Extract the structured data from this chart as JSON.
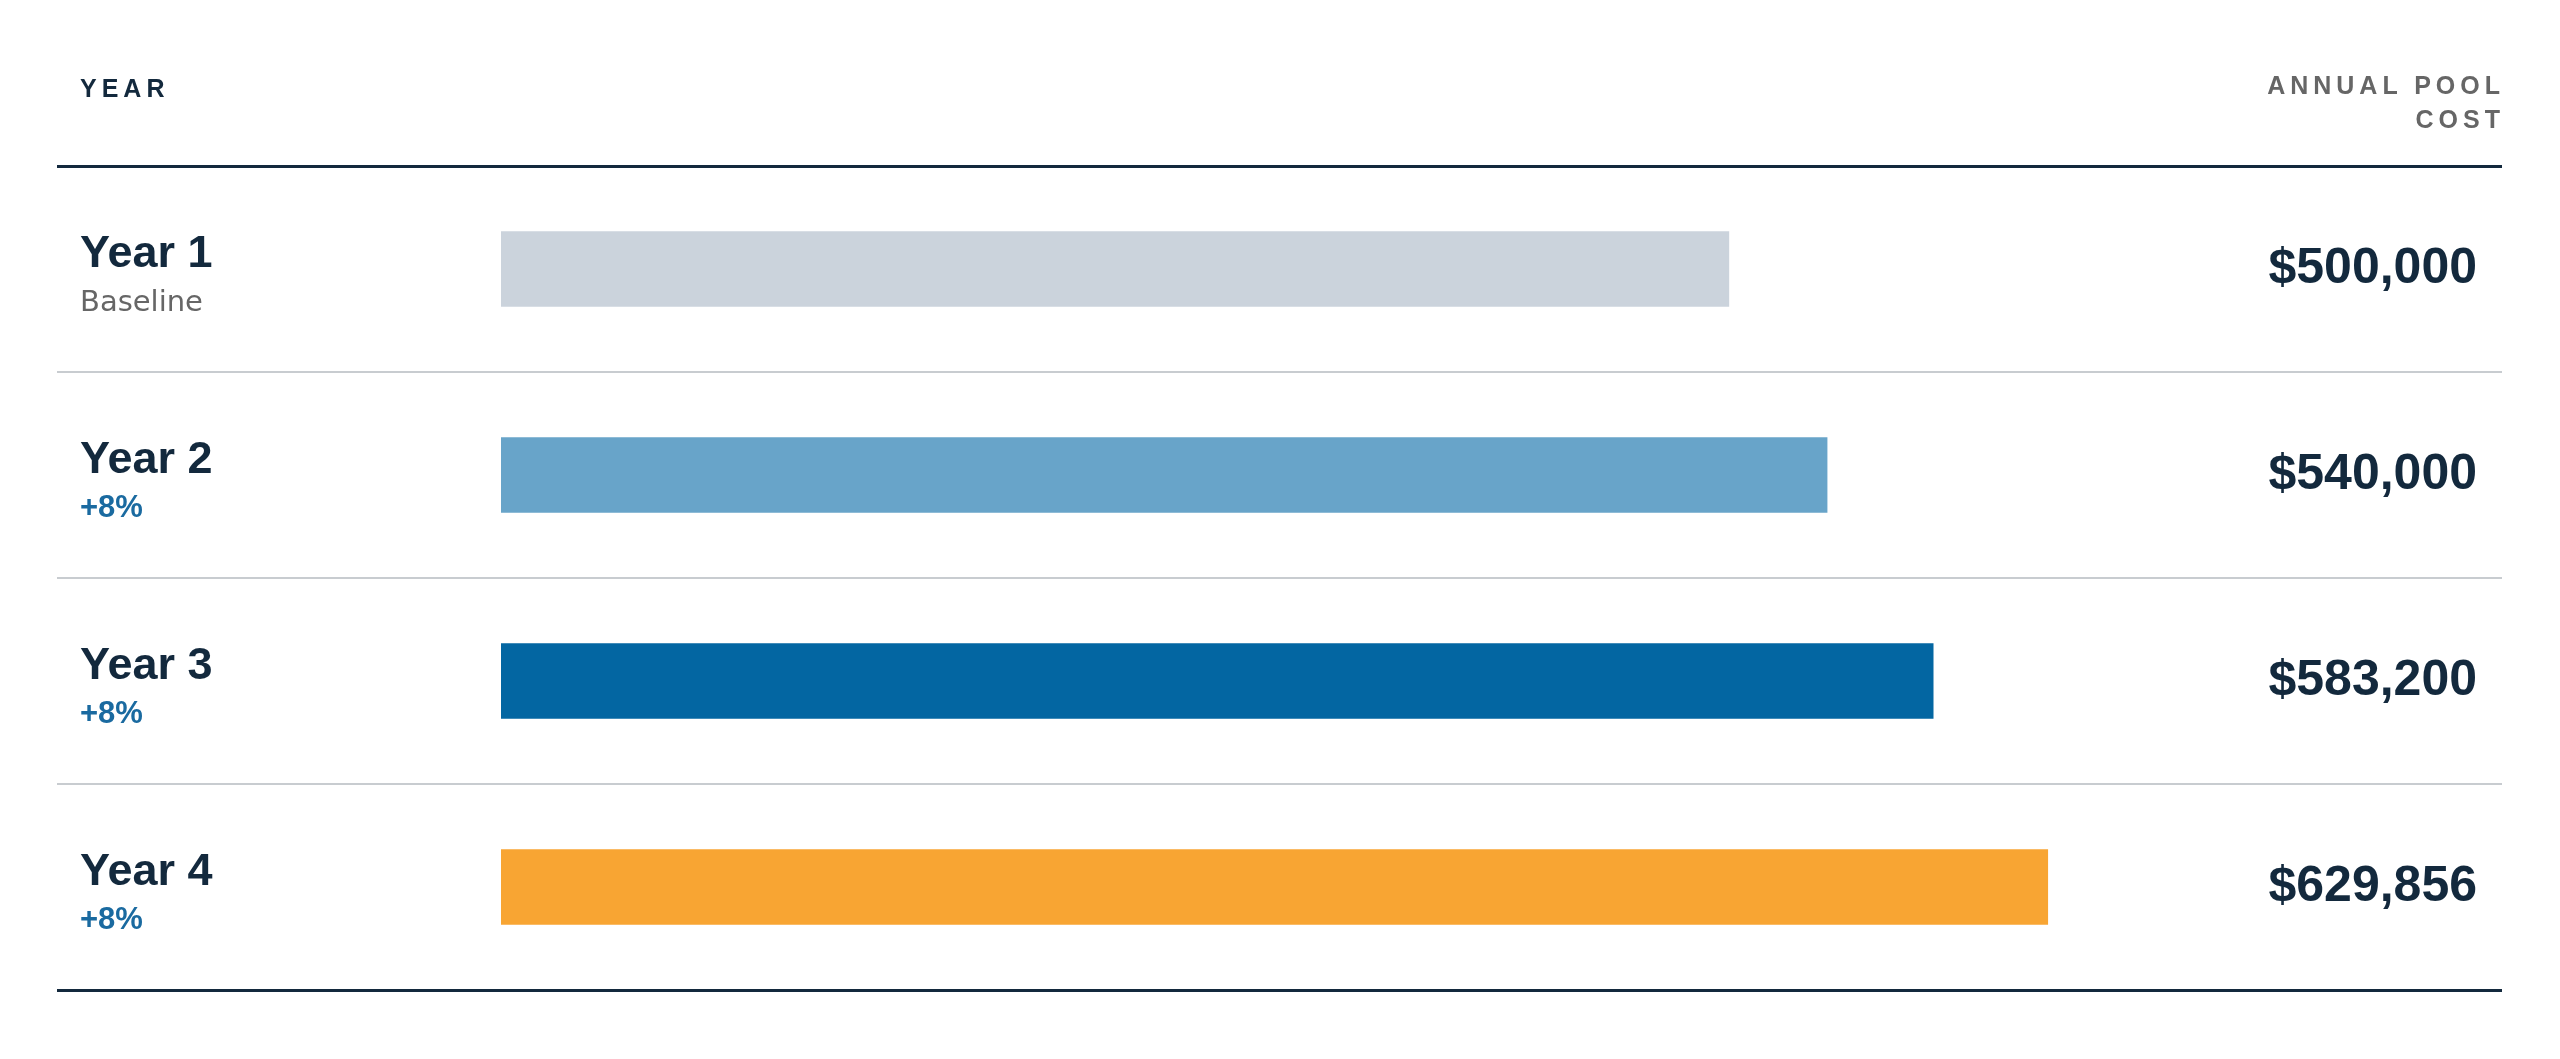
{
  "chart_data": {
    "type": "bar",
    "orientation": "horizontal",
    "ylabel": "YEAR",
    "categories": [
      "Year 1",
      "Year 2",
      "Year 3",
      "Year 4"
    ],
    "values": [
      500000,
      540000,
      583200,
      629856
    ],
    "colors": [
      "#cbd3dc",
      "#68a4c9",
      "#0366a2",
      "#f8a533"
    ],
    "value_labels": [
      "$500,000",
      "$540,000",
      "$583,200",
      "$629,856"
    ],
    "grid": "y",
    "legend": false,
    "annotations": [
      "ANNUAL POOL COST",
      "Baseline",
      "+8%",
      "+8%",
      "+8%"
    ]
  }
}
